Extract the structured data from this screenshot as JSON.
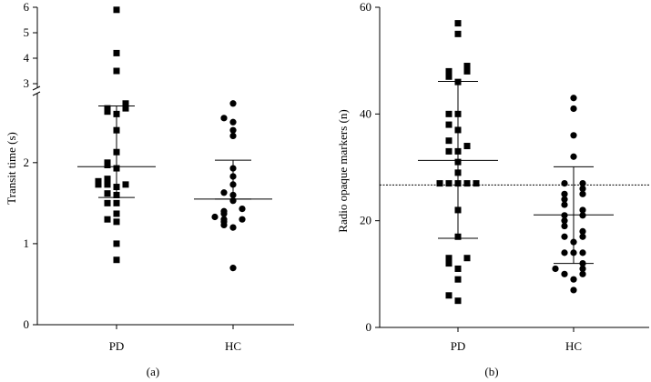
{
  "chart_data": [
    {
      "type": "scatter",
      "panel_label": "(a)",
      "ylabel": "Transit time (s)",
      "categories": [
        "PD",
        "HC"
      ],
      "y_scale": "broken: linear 0–2.75, break, then 3–6",
      "yticks_lower": [
        "0",
        "1",
        "2"
      ],
      "yticks_upper": [
        "3",
        "4",
        "5",
        "6"
      ],
      "ylim": [
        0,
        6
      ],
      "series": [
        {
          "category": "PD",
          "values": [
            0.8,
            1.0,
            1.27,
            1.3,
            1.37,
            1.5,
            1.5,
            1.6,
            1.62,
            1.7,
            1.73,
            1.73,
            1.73,
            1.77,
            1.8,
            1.93,
            1.97,
            2.0,
            2.13,
            2.4,
            2.6,
            2.63,
            2.67,
            2.67,
            2.73,
            3.5,
            4.2,
            5.9
          ],
          "mean": 1.95,
          "sd_lower": 1.57,
          "sd_upper": 2.7
        },
        {
          "category": "HC",
          "values": [
            0.7,
            1.2,
            1.23,
            1.27,
            1.3,
            1.3,
            1.33,
            1.37,
            1.4,
            1.43,
            1.53,
            1.6,
            1.63,
            1.73,
            1.83,
            1.93,
            2.33,
            2.4,
            2.5,
            2.55,
            2.73
          ],
          "mean": 1.55,
          "sd_lower": 1.55,
          "sd_upper": 2.03
        }
      ]
    },
    {
      "type": "scatter",
      "panel_label": "(b)",
      "ylabel": "Radio opaque markers (n)",
      "categories": [
        "PD",
        "HC"
      ],
      "yticks": [
        "0",
        "20",
        "40",
        "60"
      ],
      "ylim": [
        0,
        60
      ],
      "reference_line": 26.7,
      "series": [
        {
          "category": "PD",
          "values": [
            5,
            6,
            9,
            11,
            12,
            13,
            13,
            17,
            22,
            27,
            27,
            27,
            27,
            27,
            29,
            31,
            33,
            33,
            34,
            35,
            37,
            38,
            40,
            40,
            46,
            47,
            48,
            48,
            49,
            55,
            57
          ],
          "mean": 31.3,
          "sd_lower": 16.7,
          "sd_upper": 46.1
        },
        {
          "category": "HC",
          "values": [
            7,
            9,
            10,
            10,
            11,
            11,
            12,
            14,
            14,
            14,
            16,
            17,
            17,
            18,
            19,
            20,
            21,
            21,
            22,
            23,
            24,
            25,
            25,
            26,
            27,
            27,
            32,
            36,
            41,
            43
          ],
          "mean": 21.1,
          "sd_lower": 12.0,
          "sd_upper": 30.1
        }
      ]
    }
  ]
}
